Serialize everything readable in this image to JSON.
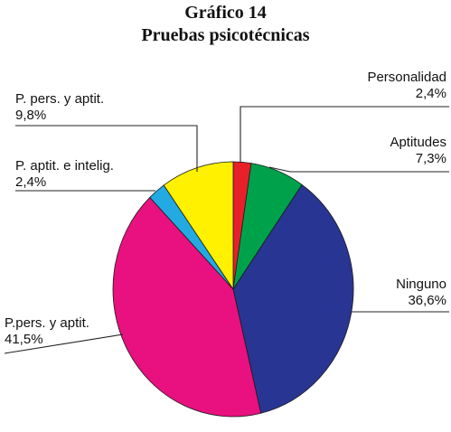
{
  "chart_data": {
    "type": "pie",
    "title": "Gráfico 14",
    "subtitle": "Pruebas psicotécnicas",
    "slices": [
      {
        "label": "Personalidad",
        "value_label": "2,4%",
        "value": 2.4,
        "color": "#e8202a"
      },
      {
        "label": "Aptitudes",
        "value_label": "7,3%",
        "value": 7.3,
        "color": "#00a14b"
      },
      {
        "label": "Ninguno",
        "value_label": "36,6%",
        "value": 36.6,
        "color": "#283592"
      },
      {
        "label": "P.pers. y aptit.",
        "value_label": "41,5%",
        "value": 41.5,
        "color": "#e8117f"
      },
      {
        "label": "P. aptit. e intelig.",
        "value_label": "2,4%",
        "value": 2.4,
        "color": "#23aae2"
      },
      {
        "label": "P. pers. y aptit.",
        "value_label": "9,8%",
        "value": 9.8,
        "color": "#fff100"
      }
    ]
  }
}
